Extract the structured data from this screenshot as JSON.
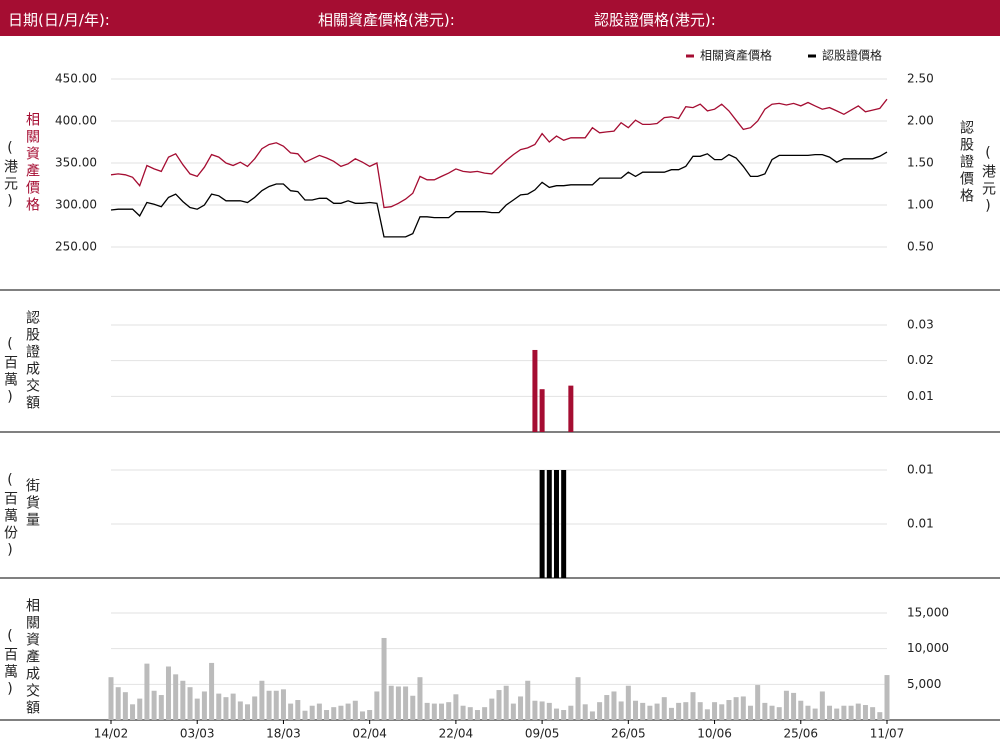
{
  "header": {
    "date_label": "日期(日/月/年):",
    "underlying_label": "相關資產價格(港元):",
    "warrant_label": "認股證價格(港元):"
  },
  "chart_data": [
    {
      "type": "line",
      "y_title": "相關資產價格",
      "y_unit": "(港元)",
      "y2_title": "認股證價格",
      "y2_unit": "(港元)",
      "ylim": [
        250,
        450
      ],
      "yticks": [
        {
          "value": 250,
          "label": "250.00"
        },
        {
          "value": 300,
          "label": "300.00"
        },
        {
          "value": 350,
          "label": "350.00"
        },
        {
          "value": 400,
          "label": "400.00"
        },
        {
          "value": 450,
          "label": "450.00"
        }
      ],
      "y2lim": [
        0.5,
        2.5
      ],
      "y2ticks": [
        {
          "value": 0.5,
          "label": "0.50"
        },
        {
          "value": 1,
          "label": "1.00"
        },
        {
          "value": 1.5,
          "label": "1.50"
        },
        {
          "value": 2,
          "label": "2.00"
        },
        {
          "value": 2.5,
          "label": "2.50"
        }
      ],
      "grid": true,
      "series": [
        {
          "name": "相關資產價格",
          "color": "#a50d32",
          "axis": "y",
          "values": [
            336,
            337,
            336,
            333,
            323,
            347,
            343,
            340,
            357,
            361,
            348,
            337,
            334,
            345,
            360,
            357,
            350,
            347,
            351,
            346,
            355,
            367,
            372,
            374,
            370,
            362,
            361,
            351,
            355,
            359,
            356,
            352,
            346,
            349,
            355,
            351,
            346,
            350,
            297,
            298,
            302,
            307,
            314,
            334,
            330,
            330,
            334,
            338,
            343,
            340,
            339,
            340,
            338,
            337,
            345,
            353,
            360,
            366,
            368,
            372,
            385,
            375,
            382,
            377,
            380,
            380,
            380,
            392,
            386,
            387,
            388,
            398,
            392,
            401,
            396,
            396,
            397,
            404,
            405,
            403,
            417,
            416,
            420,
            412,
            414,
            420,
            412,
            401,
            390,
            392,
            400,
            414,
            420,
            421,
            419,
            421,
            418,
            422,
            418,
            414,
            416,
            412,
            408,
            413,
            418,
            411,
            413,
            415,
            426
          ]
        },
        {
          "name": "認股證價格",
          "color": "#000000",
          "axis": "y2",
          "values": [
            0.94,
            0.95,
            0.95,
            0.95,
            0.87,
            1.03,
            1.01,
            0.98,
            1.09,
            1.13,
            1.04,
            0.97,
            0.95,
            1.0,
            1.13,
            1.11,
            1.05,
            1.05,
            1.05,
            1.03,
            1.09,
            1.17,
            1.22,
            1.25,
            1.25,
            1.17,
            1.16,
            1.06,
            1.06,
            1.08,
            1.08,
            1.02,
            1.02,
            1.05,
            1.02,
            1.02,
            1.03,
            1.02,
            0.62,
            0.62,
            0.62,
            0.62,
            0.66,
            0.86,
            0.86,
            0.85,
            0.85,
            0.85,
            0.92,
            0.92,
            0.92,
            0.92,
            0.92,
            0.91,
            0.91,
            1.0,
            1.06,
            1.12,
            1.13,
            1.18,
            1.27,
            1.21,
            1.23,
            1.23,
            1.24,
            1.24,
            1.24,
            1.24,
            1.32,
            1.32,
            1.32,
            1.32,
            1.39,
            1.34,
            1.39,
            1.39,
            1.39,
            1.39,
            1.42,
            1.42,
            1.46,
            1.58,
            1.58,
            1.61,
            1.54,
            1.54,
            1.6,
            1.56,
            1.46,
            1.34,
            1.34,
            1.37,
            1.54,
            1.59,
            1.59,
            1.59,
            1.59,
            1.59,
            1.6,
            1.6,
            1.57,
            1.51,
            1.55,
            1.55,
            1.55,
            1.55,
            1.55,
            1.58,
            1.63
          ]
        }
      ]
    },
    {
      "type": "bar",
      "y_title": "認股證成交額",
      "y_unit": "(百萬)",
      "color": "#a50d32",
      "ylim": [
        0,
        0.03
      ],
      "yticks": [
        0.01,
        0.02,
        0.03
      ],
      "grid": true,
      "values": [
        null,
        null,
        null,
        null,
        null,
        null,
        null,
        null,
        null,
        null,
        null,
        null,
        null,
        null,
        null,
        null,
        null,
        null,
        null,
        null,
        null,
        null,
        null,
        null,
        null,
        null,
        null,
        null,
        null,
        null,
        null,
        null,
        null,
        null,
        null,
        null,
        null,
        null,
        null,
        null,
        null,
        null,
        null,
        null,
        null,
        null,
        null,
        null,
        null,
        null,
        null,
        null,
        null,
        null,
        null,
        null,
        null,
        null,
        null,
        0.023,
        0.012,
        null,
        null,
        null,
        0.013,
        null,
        null,
        null,
        null,
        null,
        null,
        null,
        null,
        null,
        null,
        null,
        null,
        null,
        null,
        null,
        null,
        null,
        null,
        null,
        null,
        null,
        null,
        null,
        null,
        null,
        null,
        null,
        null,
        null,
        null,
        null,
        null,
        null,
        null,
        null,
        null,
        null,
        null,
        null,
        null,
        null,
        null,
        null,
        null
      ]
    },
    {
      "type": "bar",
      "y_title": "街貨量",
      "y_unit": "(百萬份)",
      "color": "#000000",
      "ylim": [
        0,
        0.01
      ],
      "yticks": [
        {
          "value": 0.005,
          "label": "0.01"
        },
        0.01
      ],
      "grid": true,
      "values": [
        null,
        null,
        null,
        null,
        null,
        null,
        null,
        null,
        null,
        null,
        null,
        null,
        null,
        null,
        null,
        null,
        null,
        null,
        null,
        null,
        null,
        null,
        null,
        null,
        null,
        null,
        null,
        null,
        null,
        null,
        null,
        null,
        null,
        null,
        null,
        null,
        null,
        null,
        null,
        null,
        null,
        null,
        null,
        null,
        null,
        null,
        null,
        null,
        null,
        null,
        null,
        null,
        null,
        null,
        null,
        null,
        null,
        null,
        null,
        null,
        0.01,
        0.01,
        0.01,
        0.01,
        null,
        null,
        null,
        null,
        null,
        null,
        null,
        null,
        null,
        null,
        null,
        null,
        null,
        null,
        null,
        null,
        null,
        null,
        null,
        null,
        null,
        null,
        null,
        null,
        null,
        null,
        null,
        null,
        null,
        null,
        null,
        null,
        null,
        null,
        null,
        null,
        null,
        null,
        null,
        null,
        null,
        null,
        null,
        null,
        null
      ]
    },
    {
      "type": "bar",
      "y_title": "相關資產成交額",
      "y_unit": "(百萬)",
      "color": "#bbbbbb",
      "ylim": [
        0,
        15000
      ],
      "yticks": [
        {
          "value": 5000,
          "label": "5,000"
        },
        {
          "value": 10000,
          "label": "10,000"
        },
        {
          "value": 15000,
          "label": "15,000"
        }
      ],
      "grid": true,
      "categories": [
        "14/02",
        null,
        null,
        null,
        null,
        null,
        null,
        null,
        null,
        null,
        null,
        null,
        "03/03",
        null,
        null,
        null,
        null,
        null,
        null,
        null,
        null,
        null,
        null,
        null,
        "18/03",
        null,
        null,
        null,
        null,
        null,
        null,
        null,
        null,
        null,
        null,
        null,
        "02/04",
        null,
        null,
        null,
        null,
        null,
        null,
        null,
        null,
        null,
        null,
        null,
        "22/04",
        null,
        null,
        null,
        null,
        null,
        null,
        null,
        null,
        null,
        null,
        null,
        "09/05",
        null,
        null,
        null,
        null,
        null,
        null,
        null,
        null,
        null,
        null,
        null,
        "26/05",
        null,
        null,
        null,
        null,
        null,
        null,
        null,
        null,
        null,
        null,
        null,
        "10/06",
        null,
        null,
        null,
        null,
        null,
        null,
        null,
        null,
        null,
        null,
        null,
        "25/06",
        null,
        null,
        null,
        null,
        null,
        null,
        null,
        null,
        null,
        null,
        null,
        "11/07"
      ],
      "values": [
        6000,
        4600,
        3900,
        2200,
        3000,
        7900,
        4100,
        3500,
        7500,
        6400,
        5500,
        4600,
        3000,
        4000,
        8000,
        3700,
        3200,
        3700,
        2600,
        2200,
        3300,
        5500,
        4100,
        4100,
        4300,
        2300,
        2800,
        1300,
        2000,
        2300,
        1400,
        1800,
        2000,
        2300,
        2700,
        1200,
        1400,
        4000,
        11500,
        4800,
        4700,
        4700,
        3400,
        6000,
        2400,
        2300,
        2300,
        2500,
        3600,
        2000,
        1800,
        1400,
        1800,
        3000,
        4200,
        4800,
        2300,
        3300,
        5500,
        2700,
        2600,
        2400,
        1600,
        1400,
        2000,
        6000,
        2200,
        1200,
        2500,
        3500,
        4000,
        2600,
        4800,
        2700,
        2400,
        2000,
        2300,
        3200,
        1700,
        2400,
        2500,
        3900,
        2500,
        1500,
        2500,
        2200,
        2800,
        3200,
        3300,
        2000,
        4900,
        2400,
        2000,
        1800,
        4100,
        3800,
        2700,
        2000,
        1600,
        4000,
        2000,
        1600,
        2000,
        2000,
        2300,
        2100,
        1800,
        1100,
        6300
      ]
    }
  ]
}
